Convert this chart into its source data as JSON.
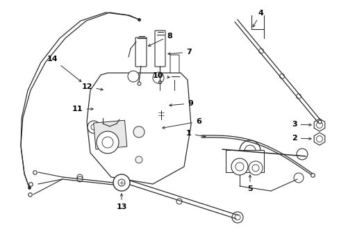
{
  "bg_color": "#ffffff",
  "line_color": "#2a2a2a",
  "figsize": [
    4.89,
    3.6
  ],
  "dpi": 100,
  "xlim": [
    0,
    489
  ],
  "ylim": [
    0,
    360
  ]
}
